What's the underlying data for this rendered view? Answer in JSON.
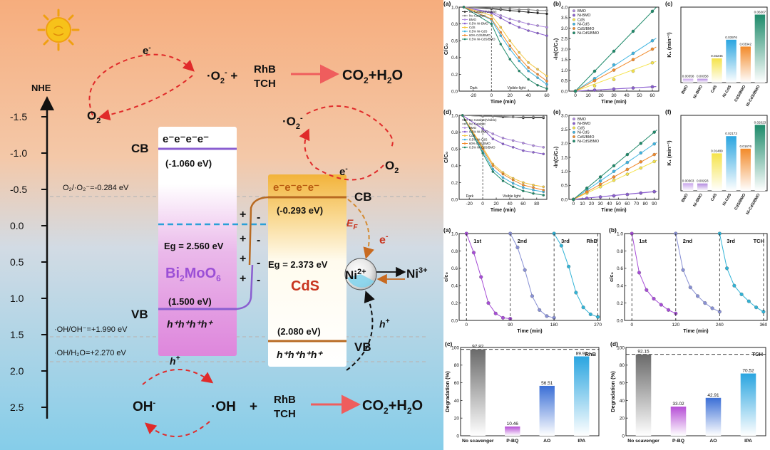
{
  "scheme": {
    "axis_label": "NHE",
    "ticks": [
      "-1.5",
      "-1.0",
      "-0.5",
      "0.0",
      "0.5",
      "1.0",
      "1.5",
      "2.0",
      "2.5"
    ],
    "top": {
      "e": "e",
      "o2_left": "O",
      "o2_sub": "2",
      "o2_rad": "·O",
      "plus": "+",
      "rhb": "RhB",
      "tch": "TCH",
      "co2": "CO",
      "h2o": "+H",
      "h2o_o": "O"
    },
    "bmo": {
      "cb_label": "CB",
      "vb_label": "VB",
      "electrons": "e⁻e⁻e⁻e⁻",
      "cb_energy": "(-1.060 eV)",
      "eg": "Eg = 2.560 eV",
      "name": "Bi",
      "name2": "MoO",
      "vb_energy": "(1.500 eV)",
      "holes": "h⁺h⁺h⁺h⁺",
      "plus": "+",
      "minus": "-"
    },
    "cds": {
      "cb_label": "CB",
      "vb_label": "VB",
      "electrons": "e⁻e⁻e⁻e⁻",
      "cb_energy": "(-0.293 eV)",
      "eg": "Eg = 2.373 eV",
      "name": "CdS",
      "vb_energy": "(2.080 eV)",
      "holes": "h⁺h⁺h⁺h⁺",
      "ef": "E",
      "ef_sub": "F"
    },
    "ni": {
      "ni2": "Ni",
      "ni2_sup": "2+",
      "ni3": "Ni",
      "ni3_sup": "3+",
      "e": "e",
      "h": "h"
    },
    "potentials": {
      "o2": "O₂/·O₂⁻=-0.284 eV",
      "oh1": "·OH/OH⁻=+1.990 eV",
      "oh2": "·OH/H₂O=+2.270 eV"
    },
    "bottom": {
      "oh_minus": "OH",
      "oh_rad": "·OH",
      "plus": "+",
      "rhb": "RhB",
      "tch": "TCH",
      "co2": "CO",
      "h2o": "+H",
      "h2o_o": "O",
      "h": "h"
    },
    "right_o2": {
      "o2_rad": "·O",
      "e": "e",
      "o2": "O"
    }
  },
  "colors": {
    "bmo_purple": "#a06ad0",
    "cds_orange": "#f0a020",
    "bar_blue": "#2aa5e0",
    "bar_orange": "#f28a2a",
    "bar_green": "#1e8a6a",
    "bar_yellow": "#f5e34a"
  },
  "chart_data": [
    {
      "panel": "(a)",
      "type": "line",
      "title": "",
      "xlabel": "Time (min)",
      "ylabel": "C/C₀",
      "xlim": [
        -35,
        60
      ],
      "ylim": [
        0,
        1.0
      ],
      "xticks": [
        -20,
        0,
        20,
        40,
        60
      ],
      "yticks": [
        0,
        0.2,
        0.4,
        0.6,
        0.8,
        1.0
      ],
      "annotations": [
        "Dark",
        "Visible-light"
      ],
      "x": [
        -30,
        0,
        10,
        20,
        30,
        40,
        50,
        60
      ],
      "series": [
        {
          "name": "No Catalyst(Visible)",
          "values": [
            1.0,
            0.98,
            0.97,
            0.96,
            0.95,
            0.94,
            0.93,
            0.92
          ]
        },
        {
          "name": "No Catalyst",
          "values": [
            1.0,
            0.99,
            0.98,
            0.98,
            0.97,
            0.97,
            0.96,
            0.96
          ]
        },
        {
          "name": "BMO",
          "values": [
            1.0,
            0.94,
            0.9,
            0.86,
            0.83,
            0.8,
            0.78,
            0.76
          ]
        },
        {
          "name": "0.5% Ni-BMO",
          "values": [
            1.0,
            0.93,
            0.87,
            0.81,
            0.76,
            0.72,
            0.69,
            0.66
          ]
        },
        {
          "name": "CdS",
          "values": [
            1.0,
            0.9,
            0.76,
            0.6,
            0.46,
            0.34,
            0.26,
            0.18
          ]
        },
        {
          "name": "0.5% Ni-CdS",
          "values": [
            1.0,
            0.85,
            0.66,
            0.5,
            0.36,
            0.24,
            0.16,
            0.08
          ]
        },
        {
          "name": "60% CdS/BMO",
          "values": [
            1.0,
            0.86,
            0.7,
            0.54,
            0.4,
            0.28,
            0.2,
            0.12
          ]
        },
        {
          "name": "0.5% Ni-CdS/BMO",
          "values": [
            1.0,
            0.8,
            0.56,
            0.38,
            0.24,
            0.14,
            0.07,
            0.03
          ]
        }
      ]
    },
    {
      "panel": "(b)",
      "type": "scatter",
      "title": "",
      "xlabel": "Time (min)",
      "ylabel": "-ln(C/C₀)",
      "xlim": [
        -5,
        65
      ],
      "ylim": [
        0,
        4.0
      ],
      "xticks": [
        0,
        10,
        20,
        30,
        40,
        50,
        60
      ],
      "yticks": [
        0,
        0.5,
        1.0,
        1.5,
        2.0,
        2.5,
        3.0,
        3.5,
        4.0
      ],
      "x": [
        0,
        15,
        30,
        45,
        60
      ],
      "series": [
        {
          "name": "BMO",
          "values": [
            0,
            0.05,
            0.1,
            0.15,
            0.2
          ]
        },
        {
          "name": "Ni-BMO",
          "values": [
            0,
            0.05,
            0.1,
            0.15,
            0.21
          ]
        },
        {
          "name": "CdS",
          "values": [
            0,
            0.25,
            0.55,
            0.95,
            1.35
          ]
        },
        {
          "name": "Ni-CdS",
          "values": [
            0,
            0.6,
            1.25,
            1.8,
            2.4
          ]
        },
        {
          "name": "CdS/BMO",
          "values": [
            0,
            0.5,
            1.0,
            1.5,
            2.0
          ]
        },
        {
          "name": "Ni-CdS/BMO",
          "values": [
            0,
            0.95,
            1.9,
            2.85,
            3.8
          ]
        }
      ]
    },
    {
      "panel": "(c)",
      "type": "bar",
      "title": "",
      "xlabel": "",
      "ylabel": "K₁ (min⁻¹)",
      "categories": [
        "BMO",
        "Ni-BMO",
        "CdS",
        "Ni-CdS",
        "CdS/BMO",
        "Ni-CdS/BMO"
      ],
      "values": [
        0.00358,
        0.00358,
        0.02245,
        0.03976,
        0.03342,
        0.06307
      ],
      "labels": [
        "0.00358",
        "0.00358",
        "0.02245",
        "0.03976",
        "0.03342",
        "0.06307"
      ],
      "ylim": [
        0,
        0.07
      ]
    },
    {
      "panel": "(d)",
      "type": "line",
      "title": "",
      "xlabel": "Time (min)",
      "ylabel": "C/C₀",
      "xlim": [
        -35,
        95
      ],
      "ylim": [
        0,
        1.0
      ],
      "xticks": [
        -20,
        0,
        20,
        40,
        60,
        80
      ],
      "yticks": [
        0,
        0.2,
        0.4,
        0.6,
        0.8,
        1.0
      ],
      "annotations": [
        "Dark",
        "Visible light"
      ],
      "x": [
        -30,
        0,
        15,
        30,
        45,
        60,
        75,
        90
      ],
      "series": [
        {
          "name": "No Catalyst(Visible)",
          "values": [
            1.0,
            0.99,
            0.99,
            0.98,
            0.98,
            0.97,
            0.97,
            0.97
          ]
        },
        {
          "name": "No Catalyst",
          "values": [
            1.0,
            0.99,
            0.99,
            0.99,
            0.98,
            0.98,
            0.98,
            0.98
          ]
        },
        {
          "name": "BMO",
          "values": [
            1.0,
            0.84,
            0.78,
            0.73,
            0.7,
            0.67,
            0.64,
            0.62
          ]
        },
        {
          "name": "0.5% Ni-BMO",
          "values": [
            1.0,
            0.84,
            0.72,
            0.66,
            0.62,
            0.58,
            0.56,
            0.54
          ]
        },
        {
          "name": "CdS",
          "values": [
            1.0,
            0.62,
            0.42,
            0.32,
            0.25,
            0.2,
            0.17,
            0.15
          ]
        },
        {
          "name": "0.5% Ni-CdS",
          "values": [
            1.0,
            0.58,
            0.36,
            0.26,
            0.19,
            0.14,
            0.11,
            0.09
          ]
        },
        {
          "name": "60% CdS/BMO",
          "values": [
            1.0,
            0.6,
            0.4,
            0.3,
            0.23,
            0.17,
            0.14,
            0.11
          ]
        },
        {
          "name": "0.5% Ni-CdS/BMO",
          "values": [
            1.0,
            0.55,
            0.33,
            0.22,
            0.15,
            0.1,
            0.07,
            0.05
          ]
        }
      ]
    },
    {
      "panel": "(e)",
      "type": "scatter",
      "title": "",
      "xlabel": "Time (min)",
      "ylabel": "-ln(C/C₀)",
      "xlim": [
        -5,
        95
      ],
      "ylim": [
        0,
        3.0
      ],
      "xticks": [
        0,
        10,
        20,
        30,
        40,
        50,
        60,
        70,
        80,
        90
      ],
      "yticks": [
        0,
        0.5,
        1.0,
        1.5,
        2.0,
        2.5,
        3.0
      ],
      "x": [
        0,
        15,
        30,
        45,
        60,
        75,
        90
      ],
      "series": [
        {
          "name": "BMO",
          "values": [
            0,
            0.04,
            0.08,
            0.12,
            0.17,
            0.22,
            0.27
          ]
        },
        {
          "name": "Ni-BMO",
          "values": [
            0,
            0.04,
            0.09,
            0.13,
            0.18,
            0.23,
            0.28
          ]
        },
        {
          "name": "CdS",
          "values": [
            0,
            0.22,
            0.45,
            0.68,
            0.9,
            1.12,
            1.35
          ]
        },
        {
          "name": "Ni-CdS",
          "values": [
            0,
            0.33,
            0.66,
            1.0,
            1.32,
            1.66,
            1.98
          ]
        },
        {
          "name": "CdS/BMO",
          "values": [
            0,
            0.27,
            0.54,
            0.8,
            1.07,
            1.34,
            1.6
          ]
        },
        {
          "name": "Ni-CdS/BMO",
          "values": [
            0,
            0.4,
            0.8,
            1.2,
            1.6,
            2.0,
            2.4
          ]
        }
      ]
    },
    {
      "panel": "(f)",
      "type": "bar",
      "title": "",
      "xlabel": "",
      "ylabel": "K₁ (min⁻¹)",
      "categories": [
        "BMO",
        "Ni-BMO",
        "CdS",
        "Ni-CdS",
        "CdS/BMO",
        "Ni-CdS/BMO"
      ],
      "values": [
        0.00303,
        0.00293,
        0.01489,
        0.02173,
        0.01676,
        0.02623
      ],
      "labels": [
        "0.00303",
        "0.00293",
        "0.01489",
        "0.02173",
        "0.01676",
        "0.02623"
      ],
      "ylim": [
        0,
        0.03
      ]
    },
    {
      "panel": "(a)",
      "type": "line",
      "title": "RhB",
      "xlabel": "Time (min)",
      "ylabel": "c/c₀",
      "xlim": [
        -15,
        275
      ],
      "ylim": [
        0,
        1.0
      ],
      "xticks": [
        0,
        90,
        180,
        270
      ],
      "yticks": [
        0,
        0.2,
        0.4,
        0.6,
        0.8,
        1.0
      ],
      "cycles": [
        "1st",
        "2nd",
        "3rd"
      ],
      "series": [
        {
          "name": "1st",
          "x": [
            0,
            15,
            30,
            45,
            60,
            75,
            90
          ],
          "values": [
            1.0,
            0.78,
            0.5,
            0.2,
            0.08,
            0.03,
            0.02
          ]
        },
        {
          "name": "2nd",
          "x": [
            90,
            105,
            120,
            135,
            150,
            165,
            180
          ],
          "values": [
            1.0,
            0.84,
            0.58,
            0.28,
            0.12,
            0.05,
            0.03
          ]
        },
        {
          "name": "3rd",
          "x": [
            180,
            195,
            210,
            225,
            240,
            255,
            270
          ],
          "values": [
            1.0,
            0.86,
            0.62,
            0.32,
            0.15,
            0.07,
            0.04
          ]
        }
      ]
    },
    {
      "panel": "(b)",
      "type": "line",
      "title": "TCH",
      "xlabel": "Time (min)",
      "ylabel": "c/c₀",
      "xlim": [
        -20,
        370
      ],
      "ylim": [
        0,
        1.0
      ],
      "xticks": [
        0,
        120,
        240,
        360
      ],
      "yticks": [
        0,
        0.2,
        0.4,
        0.6,
        0.8,
        1.0
      ],
      "cycles": [
        "1st",
        "2nd",
        "3rd"
      ],
      "series": [
        {
          "name": "1st",
          "x": [
            0,
            20,
            40,
            60,
            80,
            100,
            120
          ],
          "values": [
            1.0,
            0.55,
            0.35,
            0.25,
            0.18,
            0.12,
            0.08
          ]
        },
        {
          "name": "2nd",
          "x": [
            120,
            140,
            160,
            180,
            200,
            220,
            240
          ],
          "values": [
            1.0,
            0.58,
            0.38,
            0.28,
            0.2,
            0.14,
            0.1
          ]
        },
        {
          "name": "3rd",
          "x": [
            240,
            260,
            280,
            300,
            320,
            340,
            360
          ],
          "values": [
            1.0,
            0.6,
            0.4,
            0.3,
            0.22,
            0.15,
            0.1
          ]
        }
      ]
    },
    {
      "panel": "(c)",
      "type": "bar",
      "title": "RhB",
      "xlabel": "",
      "ylabel": "Degradation (%)",
      "categories": [
        "No scavenger",
        "P-BQ",
        "AO",
        "IPA"
      ],
      "values": [
        97.82,
        10.46,
        56.51,
        89.92
      ],
      "labels": [
        "97.82",
        "10.46",
        "56.51",
        "89.92"
      ],
      "ylim": [
        0,
        100
      ],
      "yticks": [
        0,
        20,
        40,
        60,
        80,
        100
      ],
      "ref_line": 97.82
    },
    {
      "panel": "(d)",
      "type": "bar",
      "title": "TCH",
      "xlabel": "",
      "ylabel": "Degradation (%)",
      "categories": [
        "No scavenger",
        "P-BQ",
        "AO",
        "IPA"
      ],
      "values": [
        92.15,
        33.02,
        42.91,
        70.52
      ],
      "labels": [
        "92.15",
        "33.02",
        "42.91",
        "70.52"
      ],
      "ylim": [
        0,
        100
      ],
      "yticks": [
        0,
        20,
        40,
        60,
        80,
        100
      ],
      "ref_line": 92.15
    }
  ]
}
